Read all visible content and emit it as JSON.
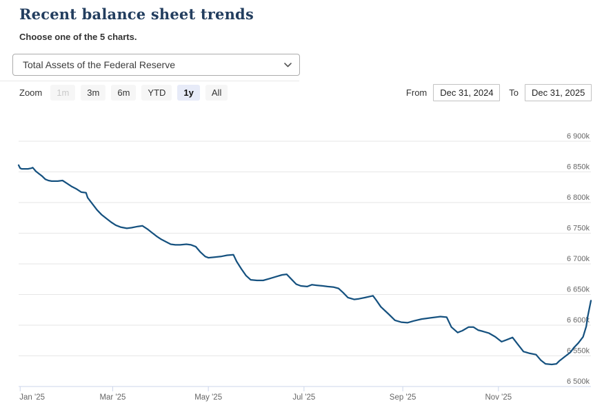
{
  "page": {
    "title": "Recent balance sheet trends",
    "subtitle": "Choose one of the 5 charts."
  },
  "chart_selector": {
    "selected_option": "Total Assets of the Federal Reserve"
  },
  "toolbar": {
    "zoom_label": "Zoom",
    "buttons": [
      {
        "label": "1m",
        "state": "disabled"
      },
      {
        "label": "3m",
        "state": "normal"
      },
      {
        "label": "6m",
        "state": "normal"
      },
      {
        "label": "YTD",
        "state": "normal"
      },
      {
        "label": "1y",
        "state": "selected"
      },
      {
        "label": "All",
        "state": "normal"
      }
    ],
    "from_label": "From",
    "from_value": "Dec 31, 2024",
    "to_label": "To",
    "to_value": "Dec 31, 2025"
  },
  "colors": {
    "title": "#233e5f",
    "line": "#15517f",
    "grid": "#e6e6e6",
    "axis": "#ccd6eb",
    "tick_label": "#666666",
    "selected_zoom_bg": "#e7ebf8"
  },
  "chart_data": {
    "type": "line",
    "series_name": "Total Assets of the Federal Reserve",
    "unit": "millions of U.S. dollars (axis shown in thousands, k)",
    "x_range_labels": [
      "Dec 31, 2024",
      "Dec 31, 2025"
    ],
    "x_span_days": 365,
    "ylim": [
      6500,
      6900
    ],
    "grid": true,
    "y_ticks": [
      {
        "v": 6500,
        "label": "6 500k"
      },
      {
        "v": 6550,
        "label": "6 550k"
      },
      {
        "v": 6600,
        "label": "6 600k"
      },
      {
        "v": 6650,
        "label": "6 650k"
      },
      {
        "v": 6700,
        "label": "6 700k"
      },
      {
        "v": 6750,
        "label": "6 750k"
      },
      {
        "v": 6800,
        "label": "6 800k"
      },
      {
        "v": 6850,
        "label": "6 850k"
      },
      {
        "v": 6900,
        "label": "6 900k"
      }
    ],
    "x_ticks": [
      {
        "d": 1,
        "label": "Jan '25"
      },
      {
        "d": 60,
        "label": "Mar '25"
      },
      {
        "d": 121,
        "label": "May '25"
      },
      {
        "d": 182,
        "label": "Jul '25"
      },
      {
        "d": 245,
        "label": "Sep '25"
      },
      {
        "d": 306,
        "label": "Nov '25"
      }
    ],
    "point_format": [
      "days_since_start",
      "value_k"
    ],
    "points": [
      [
        0,
        6861
      ],
      [
        1,
        6856
      ],
      [
        2,
        6855
      ],
      [
        6,
        6855
      ],
      [
        8,
        6856
      ],
      [
        9,
        6857
      ],
      [
        11,
        6851
      ],
      [
        13,
        6847
      ],
      [
        15,
        6843
      ],
      [
        17,
        6838
      ],
      [
        19,
        6836
      ],
      [
        21,
        6835
      ],
      [
        25,
        6835
      ],
      [
        28,
        6836
      ],
      [
        31,
        6831
      ],
      [
        34,
        6826
      ],
      [
        37,
        6822
      ],
      [
        40,
        6817
      ],
      [
        43,
        6816
      ],
      [
        44,
        6808
      ],
      [
        47,
        6798
      ],
      [
        50,
        6788
      ],
      [
        53,
        6780
      ],
      [
        56,
        6774
      ],
      [
        59,
        6768
      ],
      [
        62,
        6763
      ],
      [
        65,
        6760
      ],
      [
        69,
        6758
      ],
      [
        72,
        6759
      ],
      [
        76,
        6761
      ],
      [
        79,
        6762
      ],
      [
        82,
        6757
      ],
      [
        85,
        6751
      ],
      [
        88,
        6745
      ],
      [
        91,
        6740
      ],
      [
        94,
        6736
      ],
      [
        97,
        6732
      ],
      [
        100,
        6731
      ],
      [
        103,
        6731
      ],
      [
        107,
        6732
      ],
      [
        110,
        6731
      ],
      [
        113,
        6728
      ],
      [
        116,
        6719
      ],
      [
        119,
        6712
      ],
      [
        121,
        6710
      ],
      [
        125,
        6711
      ],
      [
        129,
        6712
      ],
      [
        133,
        6714
      ],
      [
        137,
        6715
      ],
      [
        139,
        6704
      ],
      [
        142,
        6692
      ],
      [
        145,
        6681
      ],
      [
        148,
        6674
      ],
      [
        152,
        6673
      ],
      [
        156,
        6673
      ],
      [
        160,
        6676
      ],
      [
        164,
        6679
      ],
      [
        168,
        6682
      ],
      [
        171,
        6683
      ],
      [
        174,
        6675
      ],
      [
        177,
        6667
      ],
      [
        180,
        6664
      ],
      [
        184,
        6663
      ],
      [
        187,
        6666
      ],
      [
        190,
        6665
      ],
      [
        194,
        6664
      ],
      [
        197,
        6663
      ],
      [
        201,
        6662
      ],
      [
        204,
        6660
      ],
      [
        207,
        6653
      ],
      [
        210,
        6645
      ],
      [
        214,
        6642
      ],
      [
        217,
        6643
      ],
      [
        221,
        6645
      ],
      [
        226,
        6648
      ],
      [
        228,
        6641
      ],
      [
        231,
        6630
      ],
      [
        236,
        6618
      ],
      [
        240,
        6608
      ],
      [
        244,
        6605
      ],
      [
        248,
        6604
      ],
      [
        252,
        6607
      ],
      [
        257,
        6610
      ],
      [
        263,
        6612
      ],
      [
        269,
        6614
      ],
      [
        273,
        6613
      ],
      [
        276,
        6597
      ],
      [
        280,
        6588
      ],
      [
        283,
        6591
      ],
      [
        287,
        6597
      ],
      [
        290,
        6597
      ],
      [
        293,
        6592
      ],
      [
        296,
        6590
      ],
      [
        300,
        6587
      ],
      [
        304,
        6581
      ],
      [
        308,
        6573
      ],
      [
        311,
        6576
      ],
      [
        315,
        6580
      ],
      [
        318,
        6570
      ],
      [
        322,
        6557
      ],
      [
        326,
        6554
      ],
      [
        330,
        6552
      ],
      [
        333,
        6543
      ],
      [
        336,
        6537
      ],
      [
        340,
        6536
      ],
      [
        343,
        6537
      ],
      [
        345,
        6542
      ],
      [
        349,
        6550
      ],
      [
        352,
        6556
      ],
      [
        354,
        6563
      ],
      [
        357,
        6571
      ],
      [
        360,
        6581
      ],
      [
        362,
        6598
      ],
      [
        363,
        6615
      ],
      [
        365,
        6640
      ]
    ]
  }
}
